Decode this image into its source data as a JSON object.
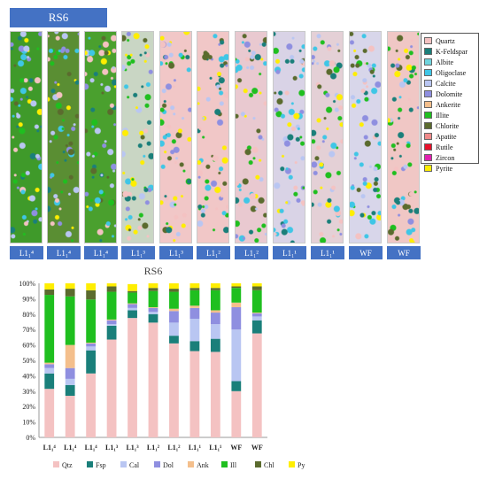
{
  "header": {
    "title": "RS6"
  },
  "strips": [
    {
      "label": "L1₁⁴",
      "base": "#3f9a2a"
    },
    {
      "label": "L1₁⁴",
      "base": "#5a8e33"
    },
    {
      "label": "L1₁⁴",
      "base": "#4aa02e"
    },
    {
      "label": "L1₁³",
      "base": "#c9d6c4"
    },
    {
      "label": "L1₁³",
      "base": "#f1c7c7"
    },
    {
      "label": "L1₁²",
      "base": "#f1c7c7"
    },
    {
      "label": "L1₁²",
      "base": "#e9c9d0"
    },
    {
      "label": "L1₁¹",
      "base": "#d9d3e6"
    },
    {
      "label": "L1₁¹",
      "base": "#e4d0d6"
    },
    {
      "label": "WF",
      "base": "#d8d6ea"
    },
    {
      "label": "WF",
      "base": "#f0c7c5"
    }
  ],
  "legend": {
    "items": [
      {
        "label": "Quartz",
        "color": "#f4c2c2"
      },
      {
        "label": "K-Feldspar",
        "color": "#1a7f7a"
      },
      {
        "label": "Albite",
        "color": "#6fd4dd"
      },
      {
        "label": "Oligoclase",
        "color": "#3fc6e6"
      },
      {
        "label": "Calcite",
        "color": "#b9c6f2"
      },
      {
        "label": "Dolomite",
        "color": "#8f8fe0"
      },
      {
        "label": "Ankerite",
        "color": "#f4bf8c"
      },
      {
        "label": "Illite",
        "color": "#1fbf1f"
      },
      {
        "label": "Chlorite",
        "color": "#5b6b2e"
      },
      {
        "label": "Apatite",
        "color": "#f08a8a"
      },
      {
        "label": "Rutile",
        "color": "#e8102a"
      },
      {
        "label": "Zircon",
        "color": "#e022b0"
      },
      {
        "label": "Pyrite",
        "color": "#ffee00"
      }
    ]
  },
  "chart_data": {
    "type": "bar",
    "stacked": true,
    "title": "RS6",
    "categories": [
      "L1₁⁴",
      "L1₁⁴",
      "L1₁⁴",
      "L1₁³",
      "L1₁³",
      "L1₁²",
      "L1₁²",
      "L1₁¹",
      "L1₁¹",
      "WF",
      "WF"
    ],
    "ylim": [
      0,
      100
    ],
    "y_ticks": [
      "0%",
      "10%",
      "20%",
      "30%",
      "40%",
      "50%",
      "60%",
      "70%",
      "80%",
      "90%",
      "100%"
    ],
    "grid": false,
    "legend_position": "bottom",
    "series": [
      {
        "name": "Qtz",
        "color": "#f4c2c2",
        "values": [
          31.5,
          27,
          41.5,
          63.5,
          77.5,
          74.5,
          61,
          56,
          55.5,
          30,
          67.5
        ]
      },
      {
        "name": "Fsp",
        "color": "#1a7f7a",
        "values": [
          10,
          7,
          15,
          9,
          5,
          5.5,
          5,
          6.5,
          8.5,
          6.5,
          8.5
        ]
      },
      {
        "name": "Cal",
        "color": "#b9c6f2",
        "values": [
          3.5,
          4,
          2.5,
          1,
          1.5,
          1.5,
          8.5,
          14.5,
          9.5,
          33.5,
          2.5
        ]
      },
      {
        "name": "Dol",
        "color": "#8f8fe0",
        "values": [
          2.5,
          7,
          2,
          2.5,
          2.5,
          2.5,
          7.5,
          7,
          7.5,
          14.5,
          2
        ]
      },
      {
        "name": "Ank",
        "color": "#f4bf8c",
        "values": [
          1,
          15,
          0.5,
          0.5,
          0.5,
          0.5,
          1.5,
          1.5,
          1.5,
          3,
          0.5
        ]
      },
      {
        "name": "Ill",
        "color": "#1fbf1f",
        "values": [
          44,
          31.5,
          28,
          18,
          7,
          10.5,
          11,
          10,
          13,
          9.5,
          14.5
        ]
      },
      {
        "name": "Chl",
        "color": "#5b6b2e",
        "values": [
          3.5,
          5,
          6,
          3.5,
          1,
          2,
          2,
          1.5,
          1.5,
          1,
          2.5
        ]
      },
      {
        "name": "Py",
        "color": "#ffee00",
        "values": [
          4,
          3.5,
          4.5,
          2,
          4.5,
          3,
          3.5,
          3,
          3,
          2,
          2
        ]
      }
    ]
  }
}
